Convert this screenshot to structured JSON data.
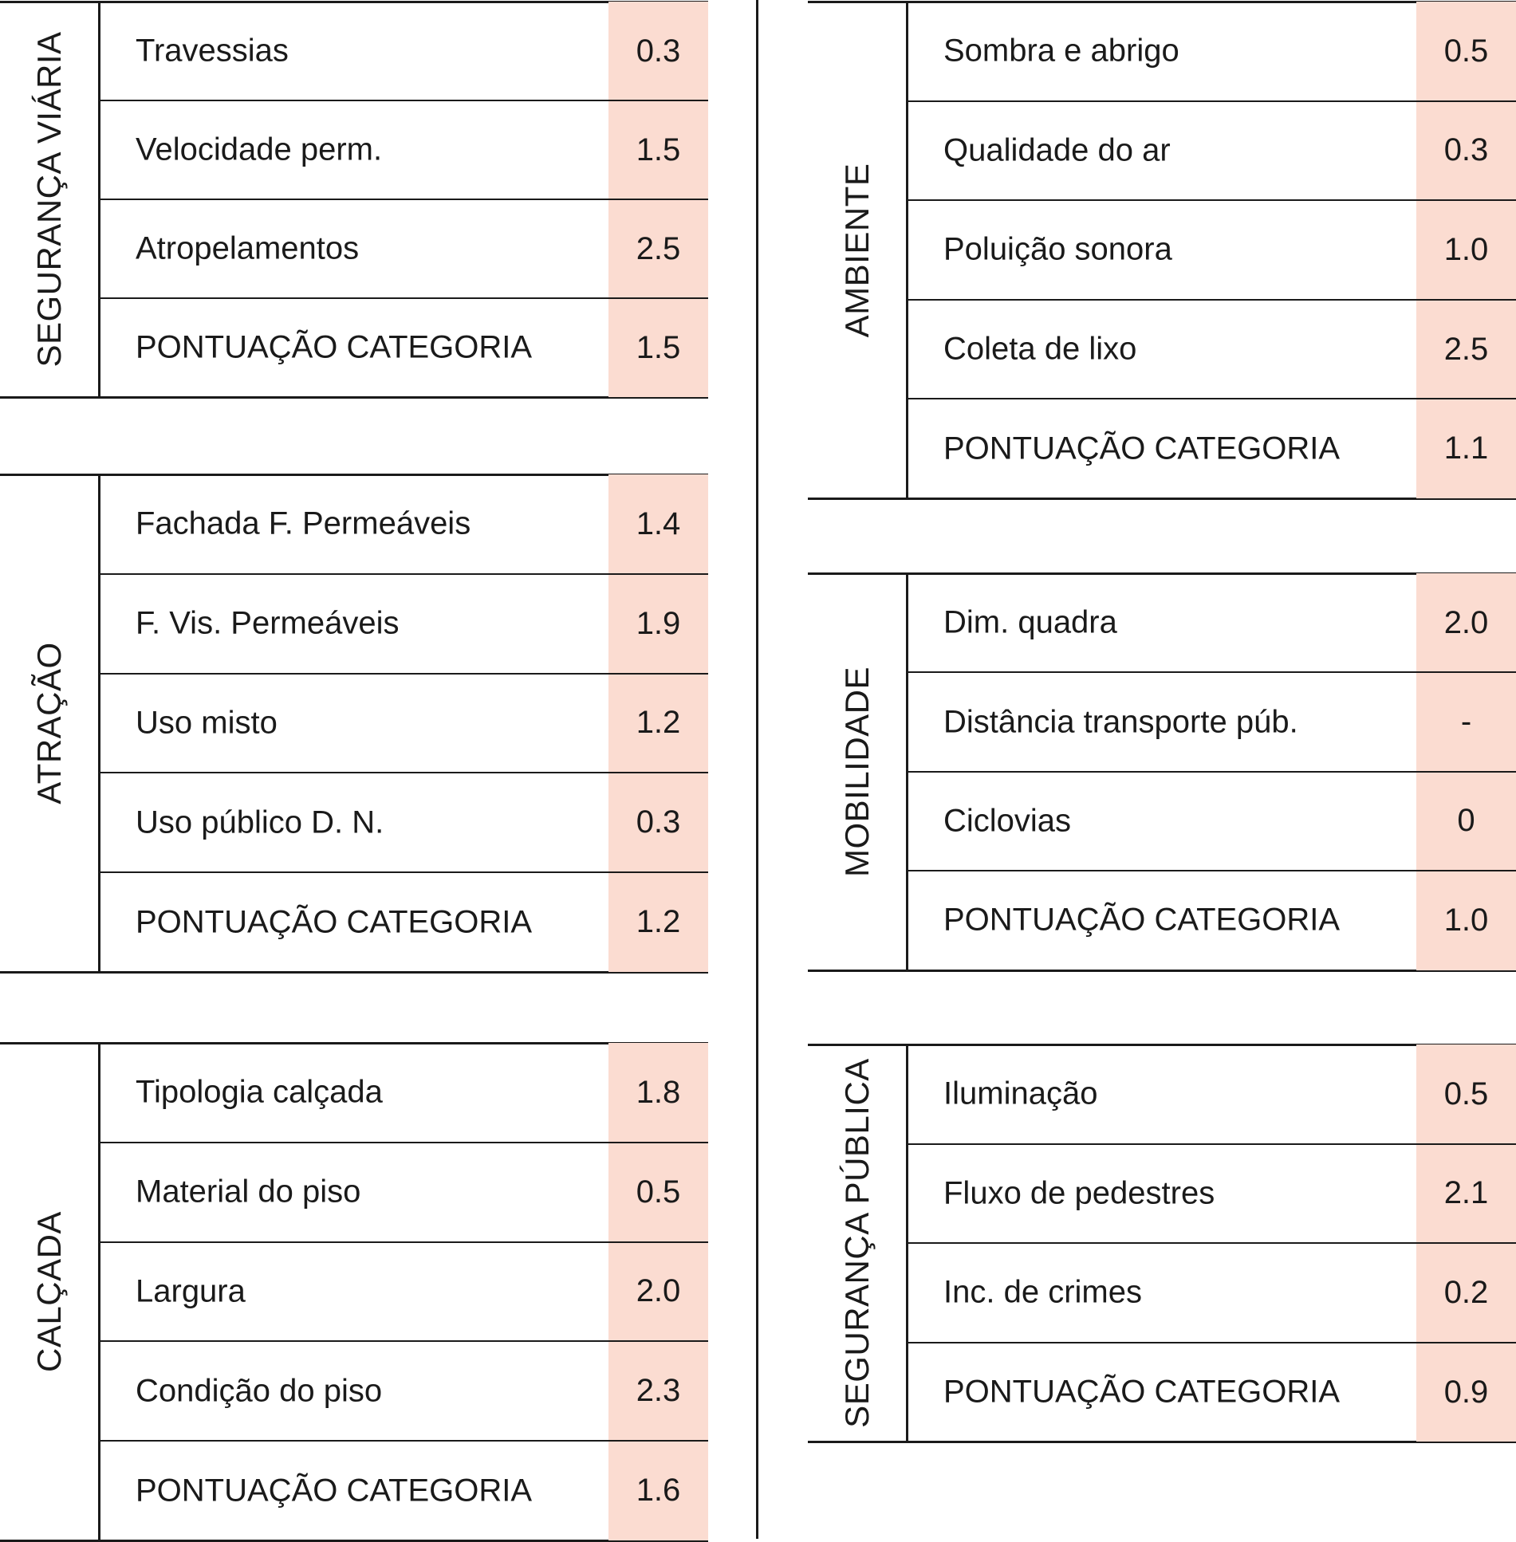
{
  "sections": [
    {
      "category": "SEGURANÇA VIÁRIA",
      "rows": [
        {
          "label": "Travessias",
          "value": "0.3"
        },
        {
          "label": "Velocidade perm.",
          "value": "1.5"
        },
        {
          "label": "Atropelamentos",
          "value": "2.5"
        },
        {
          "label": "PONTUAÇÃO CATEGORIA",
          "value": "1.5"
        }
      ]
    },
    {
      "category": "ATRAÇÃO",
      "rows": [
        {
          "label": "Fachada F. Permeáveis",
          "value": "1.4"
        },
        {
          "label": "F. Vis. Permeáveis",
          "value": "1.9"
        },
        {
          "label": "Uso misto",
          "value": "1.2"
        },
        {
          "label": "Uso público D. N.",
          "value": "0.3"
        },
        {
          "label": "PONTUAÇÃO CATEGORIA",
          "value": "1.2"
        }
      ]
    },
    {
      "category": "CALÇADA",
      "rows": [
        {
          "label": "Tipologia calçada",
          "value": "1.8"
        },
        {
          "label": "Material do piso",
          "value": "0.5"
        },
        {
          "label": "Largura",
          "value": "2.0"
        },
        {
          "label": "Condição do piso",
          "value": "2.3"
        },
        {
          "label": "PONTUAÇÃO CATEGORIA",
          "value": "1.6"
        }
      ]
    },
    {
      "category": "AMBIENTE",
      "rows": [
        {
          "label": "Sombra e abrigo",
          "value": "0.5"
        },
        {
          "label": "Qualidade do ar",
          "value": "0.3"
        },
        {
          "label": "Poluição sonora",
          "value": "1.0"
        },
        {
          "label": "Coleta de lixo",
          "value": "2.5"
        },
        {
          "label": "PONTUAÇÃO CATEGORIA",
          "value": "1.1"
        }
      ]
    },
    {
      "category": "MOBILIDADE",
      "rows": [
        {
          "label": "Dim. quadra",
          "value": "2.0"
        },
        {
          "label": "Distância transporte púb.",
          "value": "-"
        },
        {
          "label": "Ciclovias",
          "value": "0"
        },
        {
          "label": "PONTUAÇÃO CATEGORIA",
          "value": "1.0"
        }
      ]
    },
    {
      "category": "SEGURANÇA PÚBLICA",
      "rows": [
        {
          "label": "Iluminação",
          "value": "0.5"
        },
        {
          "label": "Fluxo de pedestres",
          "value": "2.1"
        },
        {
          "label": "Inc. de crimes",
          "value": "0.2"
        },
        {
          "label": "PONTUAÇÃO CATEGORIA",
          "value": "0.9"
        }
      ]
    }
  ],
  "colors": {
    "value_cell_bg": "#fbdcd1",
    "line": "#1a1a1a"
  }
}
